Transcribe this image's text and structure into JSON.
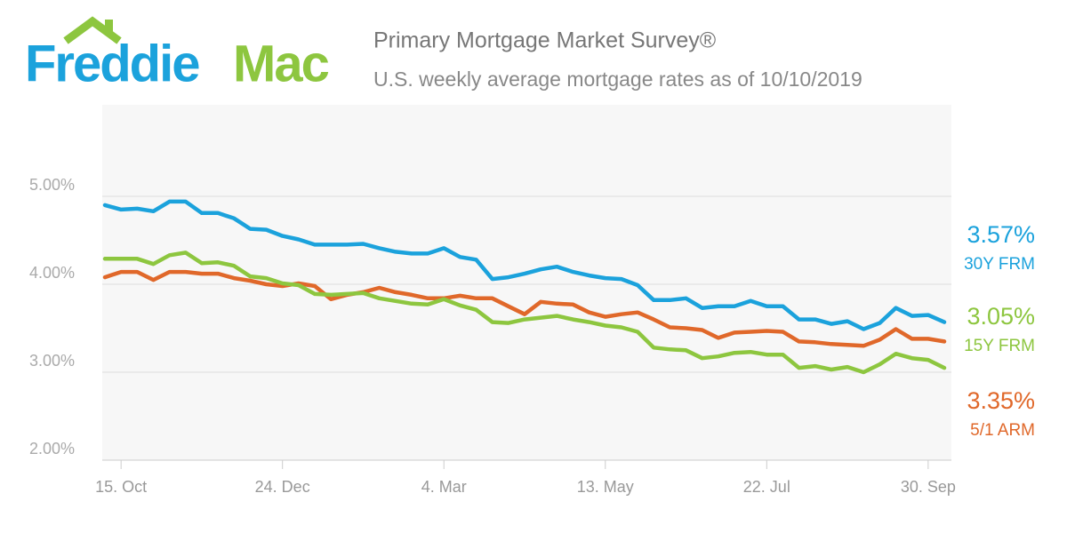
{
  "logo": [
    "Freddie",
    "Mac"
  ],
  "chart_data": {
    "type": "line",
    "title": "Primary Mortgage Market Survey®",
    "subtitle": "U.S. weekly average mortgage rates as of 10/10/2019",
    "categories": [
      null,
      "15. Oct",
      null,
      null,
      null,
      null,
      null,
      null,
      null,
      null,
      null,
      "24. Dec",
      null,
      null,
      null,
      null,
      null,
      null,
      null,
      null,
      null,
      "4. Mar",
      null,
      null,
      null,
      null,
      null,
      null,
      null,
      null,
      null,
      "13. May",
      null,
      null,
      null,
      null,
      null,
      null,
      null,
      null,
      null,
      "22. Jul",
      null,
      null,
      null,
      null,
      null,
      null,
      null,
      null,
      null,
      "30. Sep",
      null
    ],
    "ylim": [
      2,
      6
    ],
    "yticks": [
      {
        "value": 2,
        "label": "2.00%"
      },
      {
        "value": 3,
        "label": "3.00%"
      },
      {
        "value": 4,
        "label": "4.00%"
      },
      {
        "value": 5,
        "label": "5.00%"
      }
    ],
    "grid": true,
    "series": [
      {
        "name": "30Y FRM",
        "color": "#1ba2dc",
        "values": [
          4.9,
          4.85,
          4.86,
          4.83,
          4.94,
          4.94,
          4.81,
          4.81,
          4.75,
          4.63,
          4.62,
          4.55,
          4.51,
          4.45,
          4.45,
          4.45,
          4.46,
          4.41,
          4.37,
          4.35,
          4.35,
          4.41,
          4.31,
          4.28,
          4.06,
          4.08,
          4.12,
          4.17,
          4.2,
          4.14,
          4.1,
          4.07,
          4.06,
          3.99,
          3.82,
          3.82,
          3.84,
          3.73,
          3.75,
          3.75,
          3.81,
          3.75,
          3.75,
          3.6,
          3.6,
          3.55,
          3.58,
          3.49,
          3.56,
          3.73,
          3.64,
          3.65,
          3.57
        ],
        "value_labels": [
          null,
          null,
          null,
          null,
          null,
          null,
          null,
          null,
          null,
          null,
          null,
          null,
          null,
          null,
          null,
          null,
          null,
          null,
          null,
          null,
          null,
          null,
          null,
          null,
          null,
          null,
          null,
          null,
          null,
          null,
          null,
          null,
          null,
          null,
          null,
          null,
          null,
          null,
          null,
          null,
          null,
          null,
          null,
          null,
          null,
          null,
          null,
          null,
          null,
          null,
          null,
          null,
          "3.57%"
        ]
      },
      {
        "name": "15Y FRM",
        "color": "#8dc63f",
        "values": [
          4.29,
          4.29,
          4.29,
          4.23,
          4.33,
          4.36,
          4.24,
          4.25,
          4.21,
          4.09,
          4.07,
          4.01,
          3.99,
          3.89,
          3.88,
          3.89,
          3.9,
          3.84,
          3.81,
          3.78,
          3.77,
          3.83,
          3.76,
          3.71,
          3.57,
          3.56,
          3.6,
          3.62,
          3.64,
          3.6,
          3.57,
          3.53,
          3.51,
          3.46,
          3.28,
          3.26,
          3.25,
          3.16,
          3.18,
          3.22,
          3.23,
          3.2,
          3.2,
          3.05,
          3.07,
          3.03,
          3.06,
          3.0,
          3.09,
          3.21,
          3.16,
          3.14,
          3.05
        ],
        "value_labels": [
          null,
          null,
          null,
          null,
          null,
          null,
          null,
          null,
          null,
          null,
          null,
          null,
          null,
          null,
          null,
          null,
          null,
          null,
          null,
          null,
          null,
          null,
          null,
          null,
          null,
          null,
          null,
          null,
          null,
          null,
          null,
          null,
          null,
          null,
          null,
          null,
          null,
          null,
          null,
          null,
          null,
          null,
          null,
          null,
          null,
          null,
          null,
          null,
          null,
          null,
          null,
          null,
          "3.05%"
        ]
      },
      {
        "name": "5/1 ARM",
        "color": "#e0682a",
        "values": [
          4.08,
          4.14,
          4.14,
          4.05,
          4.14,
          4.14,
          4.12,
          4.12,
          4.07,
          4.04,
          4.0,
          3.98,
          4.01,
          3.98,
          3.83,
          3.88,
          3.91,
          3.96,
          3.91,
          3.88,
          3.84,
          3.84,
          3.87,
          3.84,
          3.84,
          3.75,
          3.66,
          3.8,
          3.78,
          3.77,
          3.68,
          3.63,
          3.66,
          3.68,
          3.6,
          3.51,
          3.5,
          3.48,
          3.39,
          3.45,
          3.46,
          3.47,
          3.46,
          3.35,
          3.34,
          3.32,
          3.31,
          3.3,
          3.37,
          3.49,
          3.38,
          3.38,
          3.35
        ],
        "value_labels": [
          null,
          null,
          null,
          null,
          null,
          null,
          null,
          null,
          null,
          null,
          null,
          null,
          null,
          null,
          null,
          null,
          null,
          null,
          null,
          null,
          null,
          null,
          null,
          null,
          null,
          null,
          null,
          null,
          null,
          null,
          null,
          null,
          null,
          null,
          null,
          null,
          null,
          null,
          null,
          null,
          null,
          null,
          null,
          null,
          null,
          null,
          null,
          null,
          null,
          null,
          null,
          null,
          "3.35%"
        ]
      }
    ]
  }
}
